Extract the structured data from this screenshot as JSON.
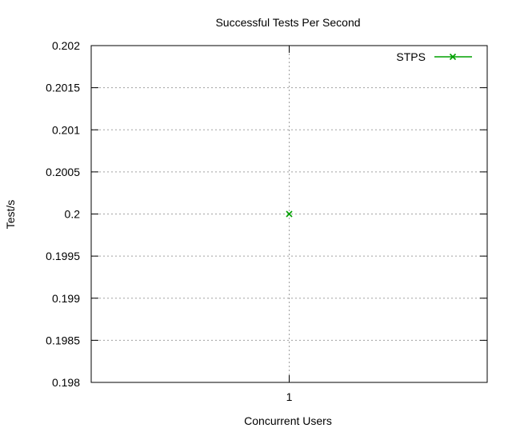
{
  "chart_data": {
    "type": "scatter",
    "title": "Successful Tests Per Second",
    "xlabel": "Concurrent Users",
    "ylabel": "Test/s",
    "x_ticks": [
      "1"
    ],
    "y_ticks": [
      "0.198",
      "0.1985",
      "0.199",
      "0.1995",
      "0.2",
      "0.2005",
      "0.201",
      "0.2015",
      "0.202"
    ],
    "ylim": [
      0.198,
      0.202
    ],
    "grid": true,
    "legend_position": "top-right",
    "series": [
      {
        "name": "STPS",
        "color": "#00a000",
        "marker": "x",
        "points": [
          {
            "x": "1",
            "y": 0.2
          }
        ]
      }
    ]
  }
}
